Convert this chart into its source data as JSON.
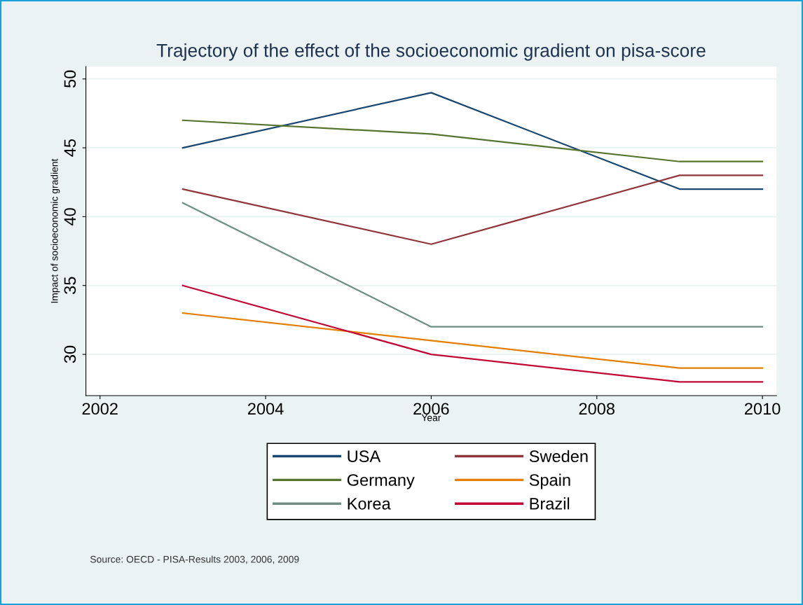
{
  "chart_data": {
    "type": "line",
    "title": "Trajectory of the effect of the socioeconomic gradient on pisa-score",
    "xlabel": "Year",
    "ylabel": "Impact of socioeconomic gradient",
    "x": [
      2003,
      2006,
      2009,
      2010
    ],
    "series": [
      {
        "name": "USA",
        "color": "#1a476f",
        "values": [
          45,
          49,
          42,
          42
        ]
      },
      {
        "name": "Germany",
        "color": "#55752f",
        "values": [
          47,
          46,
          44,
          44
        ]
      },
      {
        "name": "Korea",
        "color": "#6e8e84",
        "values": [
          41,
          32,
          32,
          32
        ]
      },
      {
        "name": "Sweden",
        "color": "#90353b",
        "values": [
          42,
          38,
          43,
          43
        ]
      },
      {
        "name": "Spain",
        "color": "#e37e00",
        "values": [
          33,
          31,
          29,
          29
        ]
      },
      {
        "name": "Brazil",
        "color": "#c10534",
        "values": [
          35,
          30,
          28,
          28
        ]
      }
    ],
    "xlim": [
      2001.83,
      2010.17
    ],
    "xticks": [
      2002,
      2004,
      2006,
      2008,
      2010
    ],
    "ylim": [
      27,
      50.9
    ],
    "yticks": [
      30,
      35,
      40,
      45,
      50
    ],
    "grid": "y",
    "legend": "bottom",
    "marker": "none",
    "line_style": "solid",
    "annotations": [
      "Source: OECD - PISA-Results 2003, 2006, 2009"
    ]
  }
}
